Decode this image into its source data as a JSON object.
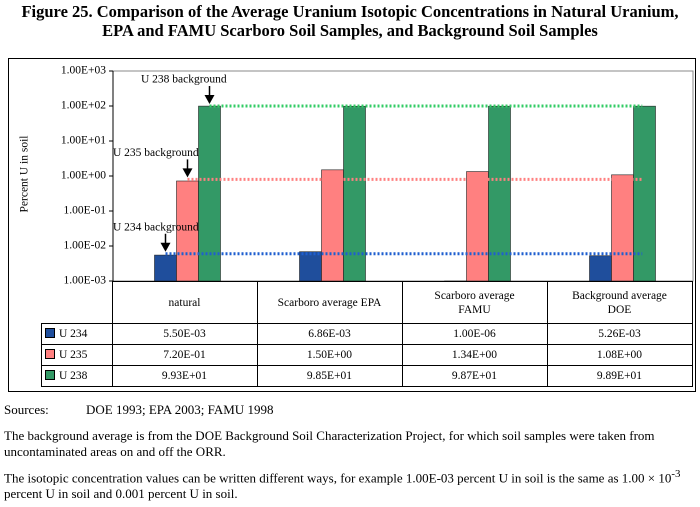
{
  "chart_data": {
    "type": "bar",
    "title": "Figure 25. Comparison of the Average Uranium Isotopic Concentrations in Natural Uranium, EPA and FAMU Scarboro Soil Samples, and Background Soil Samples",
    "ylabel": "Percent U in soil",
    "log_scale": true,
    "categories": [
      "natural",
      "Scarboro average EPA",
      "Scarboro average FAMU",
      "Background average DOE"
    ],
    "series": [
      {
        "name": "U 234",
        "color": "#1f4e9c",
        "values": [
          0.0055,
          0.00686,
          1e-06,
          0.00526
        ],
        "value_labels": [
          "5.50E-03",
          "6.86E-03",
          "1.00E-06",
          "5.26E-03"
        ]
      },
      {
        "name": "U 235",
        "color": "#ff8080",
        "values": [
          0.72,
          1.5,
          1.34,
          1.08
        ],
        "value_labels": [
          "7.20E-01",
          "1.50E+00",
          "1.34E+00",
          "1.08E+00"
        ]
      },
      {
        "name": "U 238",
        "color": "#339966",
        "values": [
          99.3,
          98.5,
          98.7,
          98.9
        ],
        "value_labels": [
          "9.93E+01",
          "9.85E+01",
          "9.87E+01",
          "9.89E+01"
        ]
      }
    ],
    "ylim": [
      0.001,
      1000
    ],
    "yticks": [
      {
        "value": 0.001,
        "label": "1.00E-03"
      },
      {
        "value": 0.01,
        "label": "1.00E-02"
      },
      {
        "value": 0.1,
        "label": "1.00E-01"
      },
      {
        "value": 1,
        "label": "1.00E+00"
      },
      {
        "value": 10,
        "label": "1.00E+01"
      },
      {
        "value": 100,
        "label": "1.00E+02"
      },
      {
        "value": 1000,
        "label": "1.00E+03"
      }
    ],
    "annotations": [
      {
        "text": "U 238 background",
        "value": 100,
        "color": "#33cc66"
      },
      {
        "text": "U 235 background",
        "value": 0.8,
        "color": "#ff8080"
      },
      {
        "text": "U 234 background",
        "value": 0.006,
        "color": "#1f5fcf"
      }
    ]
  },
  "sources": {
    "label": "Sources:",
    "text": "DOE 1993; EPA 2003; FAMU 1998"
  },
  "notes": [
    "The background average is from the DOE Background Soil Characterization Project, for which soil samples were taken from uncontaminated areas on and off the ORR.",
    {
      "before": "The isotopic concentration values can be written different ways, for example 1.00E-03 percent U in soil is the same as 1.00 × 10",
      "sup": "-3",
      "after": " percent U in soil and 0.001 percent U in soil."
    }
  ]
}
